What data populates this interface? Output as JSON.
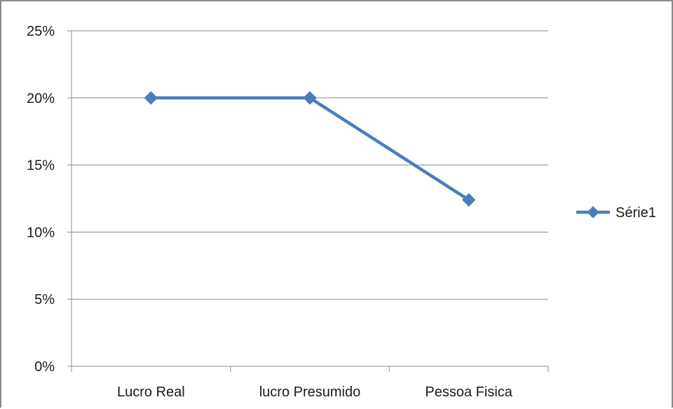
{
  "chart_data": {
    "type": "line",
    "categories": [
      "Lucro Real",
      "lucro Presumido",
      "Pessoa Fisica"
    ],
    "series": [
      {
        "name": "Série1",
        "values": [
          0.2,
          0.2,
          0.124
        ],
        "color": "#4a7ebb",
        "marker": "diamond"
      }
    ],
    "ylim": [
      0,
      0.25
    ],
    "yticks": [
      0,
      0.05,
      0.1,
      0.15,
      0.2,
      0.25
    ],
    "ytick_labels": [
      "0%",
      "5%",
      "10%",
      "15%",
      "20%",
      "25%"
    ],
    "grid": true,
    "legend_position": "right"
  }
}
